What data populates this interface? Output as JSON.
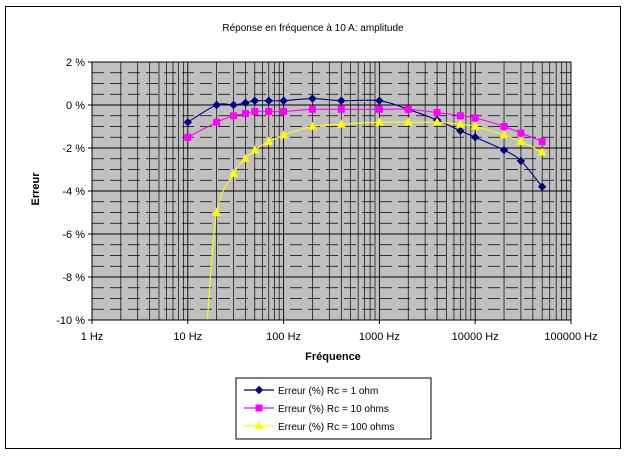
{
  "chart_data": {
    "type": "line",
    "title": "Réponse en fréquence à 10 A: amplitude",
    "xlabel": "Fréquence",
    "ylabel": "Erreur",
    "x_scale": "log",
    "xlim": [
      1,
      100000
    ],
    "ylim": [
      -10,
      2
    ],
    "x_ticks": [
      1,
      10,
      100,
      1000,
      10000,
      100000
    ],
    "x_tick_labels": [
      "1 Hz",
      "10 Hz",
      "100 Hz",
      "1000 Hz",
      "10000 Hz",
      "100000 Hz"
    ],
    "y_ticks": [
      2,
      0,
      -2,
      -4,
      -6,
      -8,
      -10
    ],
    "y_tick_labels": [
      "2 %",
      "0 %",
      "-2 %",
      "-4 %",
      "-6 %",
      "-8 %",
      "-10 %"
    ],
    "grid": true,
    "legend_position": "bottom",
    "plot_background": "#c0c0c0",
    "series": [
      {
        "name": "Erreur (%) Rc = 1 ohm",
        "color": "#000080",
        "marker": "diamond",
        "x": [
          10,
          20,
          30,
          40,
          50,
          70,
          100,
          200,
          400,
          1000,
          2000,
          4000,
          7000,
          10000,
          20000,
          30000,
          50000
        ],
        "y": [
          -0.8,
          0.0,
          0.0,
          0.1,
          0.2,
          0.2,
          0.2,
          0.3,
          0.2,
          0.2,
          -0.2,
          -0.7,
          -1.2,
          -1.5,
          -2.1,
          -2.6,
          -3.8
        ]
      },
      {
        "name": "Erreur (%) Rc = 10 ohms",
        "color": "#ff00ff",
        "marker": "square",
        "x": [
          10,
          20,
          30,
          40,
          50,
          70,
          100,
          200,
          400,
          1000,
          2000,
          4000,
          7000,
          10000,
          20000,
          30000,
          50000
        ],
        "y": [
          -1.5,
          -0.8,
          -0.5,
          -0.4,
          -0.3,
          -0.3,
          -0.3,
          -0.2,
          -0.2,
          -0.2,
          -0.2,
          -0.35,
          -0.5,
          -0.6,
          -1.0,
          -1.3,
          -1.7
        ]
      },
      {
        "name": "Erreur (%) Rc = 100 ohms",
        "color": "#ffff00",
        "marker": "triangle",
        "x": [
          16,
          20,
          30,
          40,
          50,
          70,
          100,
          200,
          400,
          1000,
          2000,
          4000,
          7000,
          10000,
          20000,
          30000,
          50000
        ],
        "y": [
          -10.0,
          -5.0,
          -3.2,
          -2.5,
          -2.1,
          -1.7,
          -1.4,
          -1.0,
          -0.9,
          -0.8,
          -0.8,
          -0.8,
          -0.9,
          -1.0,
          -1.4,
          -1.7,
          -2.2
        ]
      }
    ]
  }
}
